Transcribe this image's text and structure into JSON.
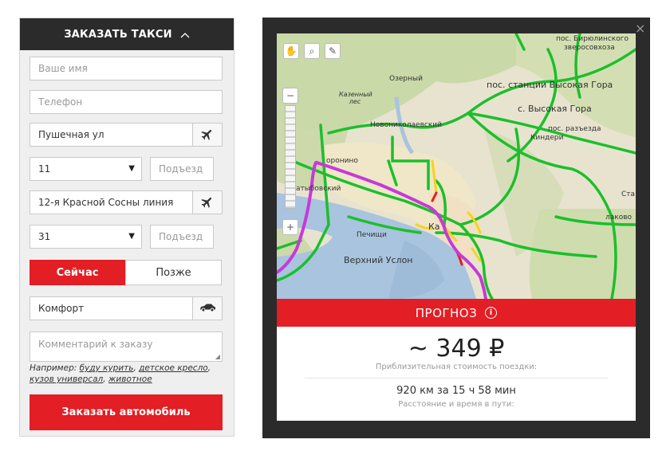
{
  "order": {
    "header_title": "ЗАКАЗАТЬ ТАКСИ",
    "header_chevron": "^",
    "name_placeholder": "Ваше имя",
    "phone_placeholder": "Телефон",
    "from_street": "Пушечная ул",
    "from_house": "11",
    "from_entrance_placeholder": "Подъезд",
    "to_street": "12-я Красной Сосны линия",
    "to_house": "31",
    "to_entrance_placeholder": "Подъезд",
    "now_label": "Сейчас",
    "later_label": "Позже",
    "tariff": "Комфорт",
    "comment_placeholder": "Комментарий к заказу",
    "hint_prefix": "Например:",
    "hint_examples": [
      "буду курить",
      "детское кресло",
      "кузов универсал",
      "животное"
    ],
    "submit_label": "Заказать автомобиль",
    "accent_color": "#e31e24"
  },
  "map": {
    "labels": {
      "birulinsky": "пос. Бирюлинского",
      "zverosovkhoza": "зверосовхоза",
      "ozerny": "Озерный",
      "vysokaya_gora_station": "пос. станции Высокая Гора",
      "kazenny_les": "Казенный лес",
      "vysokaya_gora": "с. Высокая Гора",
      "novonikolaevsky": "Новониколаевский",
      "razezda": "пос. разъезда",
      "ingeri": "Киндери",
      "voronino": "оронино",
      "ovskiy": "атыбовский",
      "ka": "Ка",
      "pechishchi": "Печищи",
      "verkhny_uslon": "Верхний Услон",
      "st": "Ста",
      "lakovo": "лаково"
    },
    "controls": {
      "hand_icon": "hand-icon",
      "magnifier_icon": "magnifier-icon",
      "ruler_icon": "ruler-icon",
      "zoom_in": "+",
      "zoom_out": "−"
    }
  },
  "forecast": {
    "title": "ПРОГНОЗ",
    "info_symbol": "i",
    "price": "~ 349 ₽",
    "price_caption": "Приблизительная стоимость поездки:",
    "distance_time": "920 км за 15 ч 58 мин",
    "distance_caption": "Расстояние и время в пути:",
    "close_symbol": "×"
  }
}
